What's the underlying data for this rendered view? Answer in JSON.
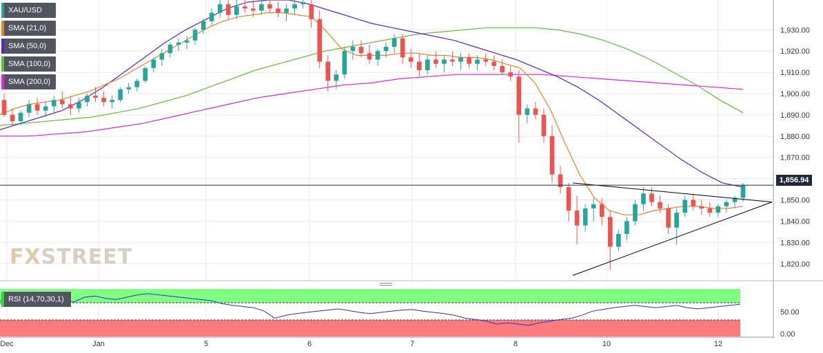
{
  "symbol": "XAU/USD",
  "colors": {
    "background": "#ffffff",
    "grid": "#e8e8e8",
    "candle_up": "#26a69a",
    "candle_down": "#ef5350",
    "sma21": "#f07f22",
    "sma50": "#5a1fd6",
    "sma100": "#5cbf2a",
    "sma200": "#e61ee6",
    "rsi_line": "#2233cc",
    "rsi_overbought": "#80ff80",
    "rsi_oversold": "#ff7a7a",
    "price_tag": "#1e2a3c"
  },
  "legend": [
    {
      "label": "XAU/USD",
      "color": "#26a69a"
    },
    {
      "label": "SMA (21,0)",
      "color": "#f07f22"
    },
    {
      "label": "SMA (50,0)",
      "color": "#5a1fd6"
    },
    {
      "label": "SMA (100,0)",
      "color": "#5cbf2a"
    },
    {
      "label": "SMA (200,0)",
      "color": "#e61ee6"
    }
  ],
  "current_price": "1,856.94",
  "watermark": {
    "fx": "FX",
    "street": "STREET"
  },
  "rsi": {
    "label": "RSI (14,70,30,1)",
    "ticks": [
      "50.00",
      "0.00"
    ]
  },
  "chart_data": {
    "type": "candlestick",
    "title": "",
    "ylim": [
      1812,
      1944
    ],
    "y_ticks": [
      "1,820.00",
      "1,830.00",
      "1,840.00",
      "1,850.00",
      "1,860.00",
      "1,870.00",
      "1,880.00",
      "1,890.00",
      "1,900.00",
      "1,910.00",
      "1,920.00",
      "1,930.00"
    ],
    "x_ticks": [
      "Dec",
      "Jan",
      "5",
      "6",
      "7",
      "8",
      "10",
      "12"
    ],
    "current_price": 1856.94,
    "candles": [
      [
        1897,
        1900,
        1889,
        1890
      ],
      [
        1890,
        1893,
        1885,
        1887
      ],
      [
        1887,
        1892,
        1885,
        1891
      ],
      [
        1891,
        1897,
        1889,
        1895
      ],
      [
        1895,
        1898,
        1890,
        1892
      ],
      [
        1892,
        1896,
        1889,
        1894
      ],
      [
        1894,
        1899,
        1891,
        1897
      ],
      [
        1897,
        1901,
        1893,
        1895
      ],
      [
        1895,
        1899,
        1890,
        1893
      ],
      [
        1893,
        1898,
        1891,
        1896
      ],
      [
        1896,
        1900,
        1894,
        1899
      ],
      [
        1899,
        1903,
        1896,
        1898
      ],
      [
        1898,
        1901,
        1894,
        1896
      ],
      [
        1896,
        1899,
        1893,
        1897
      ],
      [
        1897,
        1903,
        1896,
        1902
      ],
      [
        1902,
        1905,
        1900,
        1903
      ],
      [
        1903,
        1907,
        1901,
        1906
      ],
      [
        1906,
        1913,
        1905,
        1912
      ],
      [
        1912,
        1917,
        1910,
        1916
      ],
      [
        1916,
        1921,
        1913,
        1919
      ],
      [
        1919,
        1924,
        1917,
        1923
      ],
      [
        1923,
        1926,
        1920,
        1924
      ],
      [
        1924,
        1927,
        1921,
        1925
      ],
      [
        1925,
        1931,
        1923,
        1930
      ],
      [
        1930,
        1935,
        1928,
        1934
      ],
      [
        1934,
        1940,
        1932,
        1938
      ],
      [
        1938,
        1944,
        1936,
        1942
      ],
      [
        1942,
        1944,
        1935,
        1937
      ],
      [
        1937,
        1944,
        1935,
        1941
      ],
      [
        1941,
        1944,
        1938,
        1940
      ],
      [
        1940,
        1944,
        1936,
        1939
      ],
      [
        1939,
        1944,
        1937,
        1942
      ],
      [
        1942,
        1944,
        1938,
        1940
      ],
      [
        1940,
        1943,
        1936,
        1938
      ],
      [
        1938,
        1942,
        1934,
        1940
      ],
      [
        1940,
        1944,
        1937,
        1942
      ],
      [
        1942,
        1944,
        1940,
        1943
      ],
      [
        1942,
        1944,
        1931,
        1935
      ],
      [
        1935,
        1939,
        1912,
        1915
      ],
      [
        1915,
        1918,
        1901,
        1906
      ],
      [
        1906,
        1911,
        1902,
        1909
      ],
      [
        1909,
        1922,
        1907,
        1920
      ],
      [
        1920,
        1925,
        1916,
        1922
      ],
      [
        1922,
        1925,
        1917,
        1919
      ],
      [
        1919,
        1923,
        1914,
        1916
      ],
      [
        1916,
        1921,
        1913,
        1920
      ],
      [
        1920,
        1924,
        1917,
        1922
      ],
      [
        1922,
        1928,
        1919,
        1926
      ],
      [
        1926,
        1928,
        1914,
        1917
      ],
      [
        1917,
        1921,
        1912,
        1915
      ],
      [
        1915,
        1919,
        1908,
        1911
      ],
      [
        1911,
        1918,
        1909,
        1916
      ],
      [
        1916,
        1920,
        1912,
        1914
      ],
      [
        1914,
        1918,
        1910,
        1916
      ],
      [
        1916,
        1920,
        1913,
        1915
      ],
      [
        1915,
        1919,
        1911,
        1917
      ],
      [
        1917,
        1919,
        1912,
        1914
      ],
      [
        1914,
        1918,
        1911,
        1916
      ],
      [
        1916,
        1919,
        1913,
        1915
      ],
      [
        1915,
        1918,
        1911,
        1913
      ],
      [
        1913,
        1916,
        1909,
        1910
      ],
      [
        1910,
        1913,
        1906,
        1908
      ],
      [
        1908,
        1911,
        1877,
        1890
      ],
      [
        1890,
        1895,
        1886,
        1893
      ],
      [
        1893,
        1896,
        1888,
        1890
      ],
      [
        1890,
        1893,
        1877,
        1880
      ],
      [
        1880,
        1885,
        1858,
        1862
      ],
      [
        1862,
        1866,
        1853,
        1856
      ],
      [
        1856,
        1858,
        1840,
        1845
      ],
      [
        1845,
        1852,
        1829,
        1838
      ],
      [
        1838,
        1848,
        1835,
        1846
      ],
      [
        1846,
        1851,
        1840,
        1848
      ],
      [
        1848,
        1851,
        1838,
        1842
      ],
      [
        1842,
        1845,
        1817,
        1828
      ],
      [
        1828,
        1836,
        1826,
        1834
      ],
      [
        1834,
        1842,
        1831,
        1840
      ],
      [
        1840,
        1850,
        1838,
        1848
      ],
      [
        1848,
        1856,
        1845,
        1853
      ],
      [
        1853,
        1856,
        1847,
        1849
      ],
      [
        1849,
        1852,
        1844,
        1846
      ],
      [
        1846,
        1848,
        1834,
        1837
      ],
      [
        1837,
        1846,
        1829,
        1844
      ],
      [
        1844,
        1852,
        1842,
        1850
      ],
      [
        1850,
        1853,
        1845,
        1847
      ],
      [
        1847,
        1850,
        1843,
        1846
      ],
      [
        1846,
        1849,
        1842,
        1844
      ],
      [
        1844,
        1848,
        1842,
        1847
      ],
      [
        1847,
        1850,
        1844,
        1849
      ],
      [
        1849,
        1852,
        1846,
        1851
      ],
      [
        1851,
        1858,
        1849,
        1856.94
      ]
    ],
    "sma21": [
      1890,
      1893,
      1895,
      1896,
      1897,
      1899,
      1901,
      1904,
      1907,
      1911,
      1915,
      1919,
      1923,
      1927,
      1931,
      1934,
      1936,
      1937,
      1938,
      1938,
      1937,
      1936,
      1929,
      1921,
      1918,
      1918,
      1918,
      1919,
      1919,
      1918,
      1918,
      1917,
      1917,
      1916,
      1914,
      1912,
      1905,
      1893,
      1877,
      1862,
      1851,
      1845,
      1843,
      1843,
      1845,
      1846,
      1847,
      1847,
      1846,
      1846,
      1847
    ],
    "sma50": [
      1883,
      1886,
      1889,
      1892,
      1897,
      1903,
      1910,
      1917,
      1924,
      1930,
      1935,
      1940,
      1943,
      1944,
      1944,
      1942,
      1939,
      1936,
      1933,
      1931,
      1929,
      1927,
      1925,
      1922,
      1919,
      1916,
      1912,
      1908,
      1903,
      1897,
      1890,
      1883,
      1876,
      1869,
      1863,
      1858,
      1856
    ],
    "sma100": [
      1885,
      1886,
      1887,
      1888,
      1889,
      1891,
      1893,
      1896,
      1899,
      1903,
      1907,
      1911,
      1914,
      1917,
      1920,
      1922,
      1924,
      1926,
      1928,
      1929,
      1930,
      1931,
      1931,
      1931,
      1930,
      1928,
      1925,
      1921,
      1916,
      1910,
      1904,
      1897,
      1891
    ],
    "sma200": [
      1880,
      1880,
      1881,
      1882,
      1884,
      1886,
      1889,
      1892,
      1895,
      1898,
      1900,
      1902,
      1904,
      1905,
      1907,
      1908,
      1909,
      1909,
      1909,
      1909,
      1908,
      1907,
      1906,
      1905,
      1904,
      1903,
      1902
    ],
    "trendlines": [
      {
        "from": [
          66,
          1858
        ],
        "to": [
          104,
          1849
        ]
      },
      {
        "from": [
          66,
          1814.5
        ],
        "to": [
          104,
          1849
        ]
      }
    ],
    "rsi_values": [
      60,
      62,
      58,
      55,
      62,
      65,
      60,
      58,
      66,
      68,
      64,
      62,
      66,
      70,
      72,
      70,
      68,
      66,
      64,
      62,
      60,
      55,
      52,
      50,
      48,
      42,
      30,
      35,
      38,
      40,
      42,
      44,
      46,
      43,
      40,
      38,
      40,
      42,
      44,
      45,
      42,
      40,
      38,
      35,
      30,
      28,
      25,
      20,
      22,
      20,
      18,
      22,
      25,
      28,
      30,
      35,
      42,
      45,
      48,
      50,
      52,
      50,
      48,
      50,
      52,
      48,
      46,
      48,
      50,
      52,
      54
    ]
  }
}
